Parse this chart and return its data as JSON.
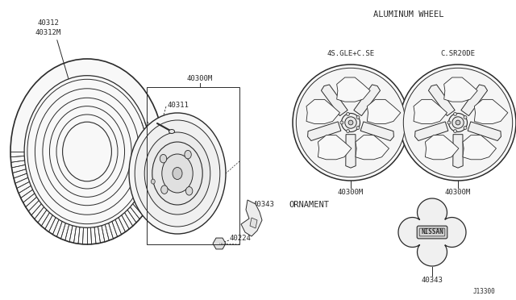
{
  "bg_color": "#ffffff",
  "line_color": "#2a2a2a",
  "fig_width": 6.4,
  "fig_height": 3.72,
  "dpi": 100,
  "labels": {
    "tire_1": "40312",
    "tire_2": "40312M",
    "wheel_rim": "40300M",
    "valve": "40311",
    "lug_nut": "40224",
    "cap_small": "40343",
    "alum_wheel_title": "ALUMINUM WHEEL",
    "alum_wheel_left_label": "4S.GLE+C.SE",
    "alum_wheel_right_label": "C.SR20DE",
    "alum_wheel_left_part": "40300M",
    "alum_wheel_right_part": "40300M",
    "ornament_title": "ORNAMENT",
    "ornament_part": "40343",
    "diagram_num": "J13300"
  }
}
